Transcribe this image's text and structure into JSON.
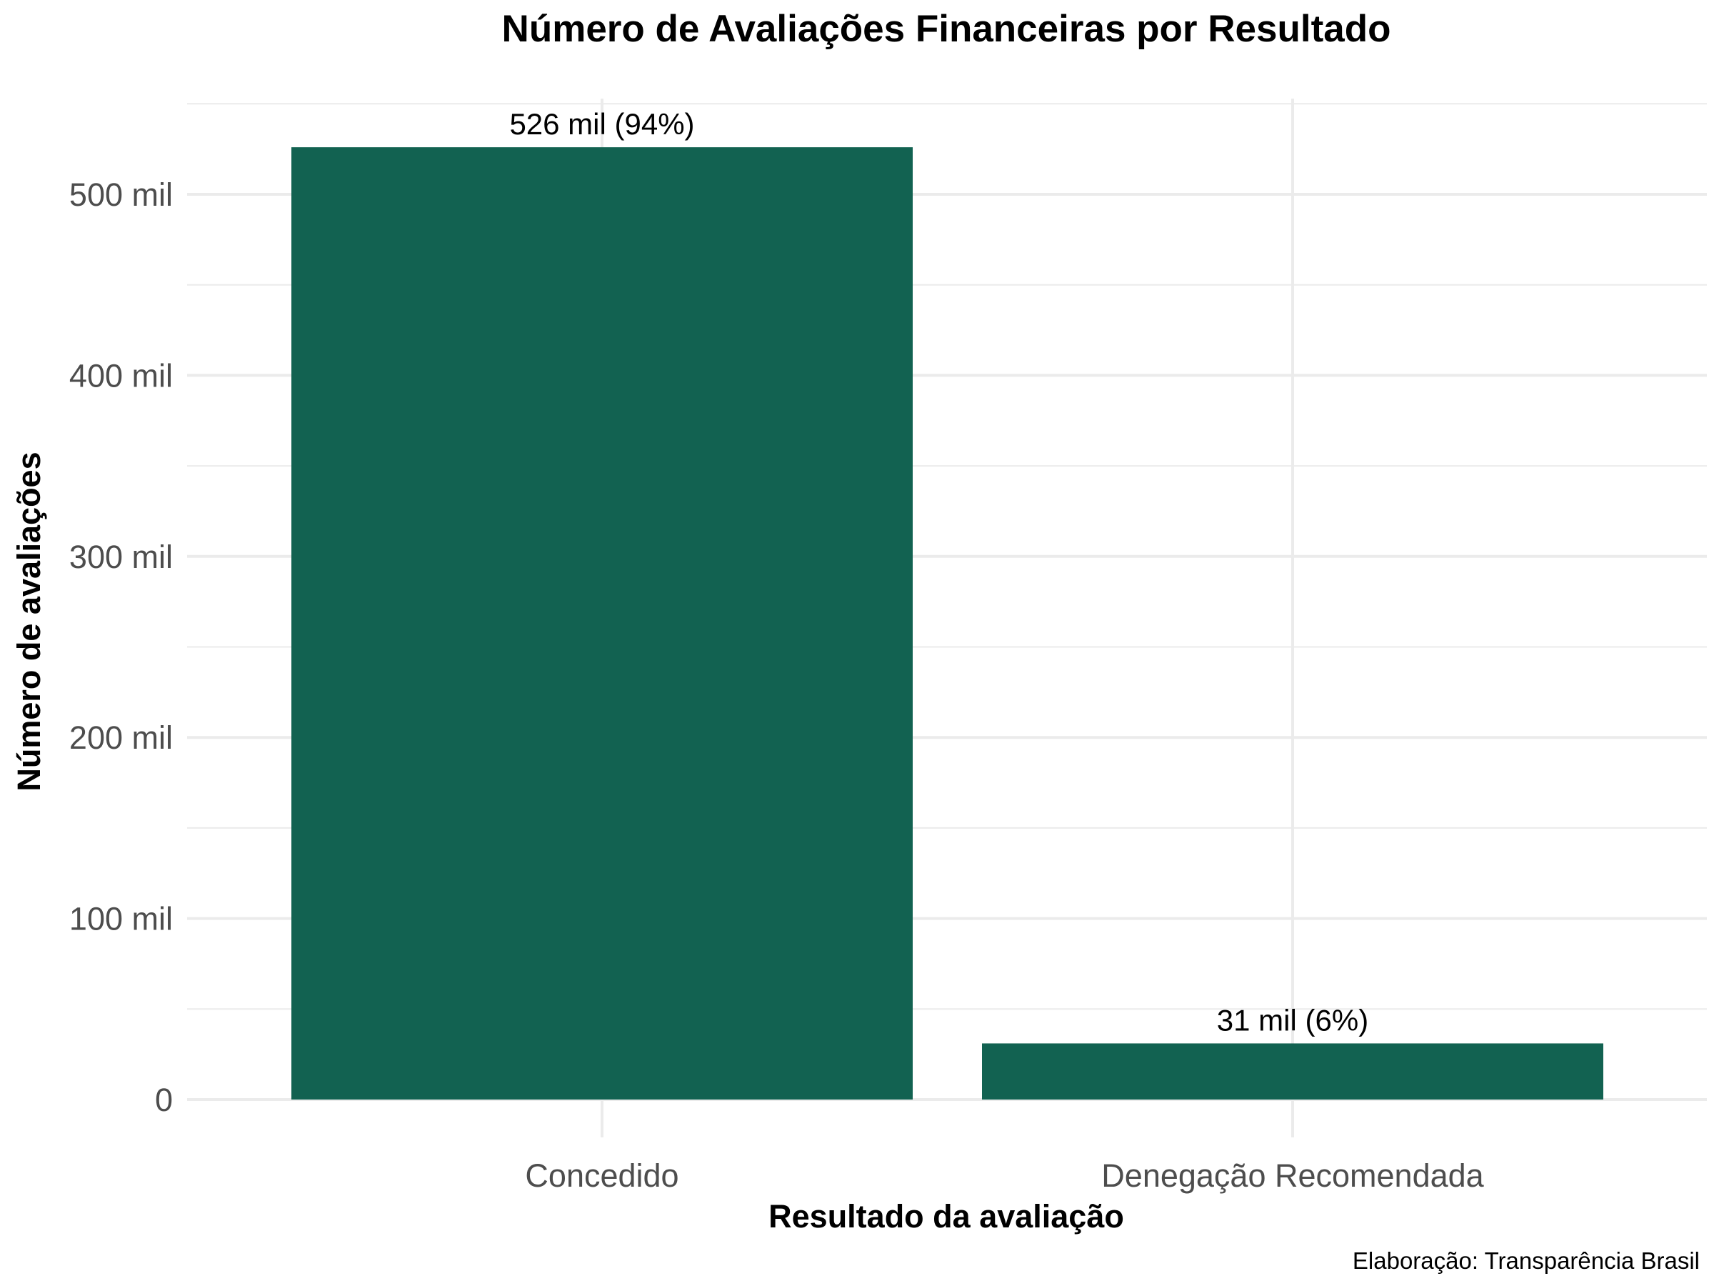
{
  "chart_data": {
    "type": "bar",
    "title": "Número de Avaliações Financeiras por Resultado",
    "xlabel": "Resultado da avaliação",
    "ylabel": "Número de avaliações",
    "caption": "Elaboração: Transparência Brasil",
    "categories": [
      "Concedido",
      "Denegação Recomendada"
    ],
    "values": [
      526000,
      31000
    ],
    "data_labels": [
      "526 mil (94%)",
      "31 mil (6%)"
    ],
    "ylim": [
      0,
      550000
    ],
    "yticks": [
      {
        "value": 0,
        "label": "0"
      },
      {
        "value": 100000,
        "label": "100 mil"
      },
      {
        "value": 200000,
        "label": "200 mil"
      },
      {
        "value": 300000,
        "label": "300 mil"
      },
      {
        "value": 400000,
        "label": "400 mil"
      },
      {
        "value": 500000,
        "label": "500 mil"
      }
    ],
    "minor_ticks": [
      50000,
      150000,
      250000,
      350000,
      450000,
      550000
    ],
    "grid": true,
    "legend": "none",
    "colors": {
      "bar": "#126251",
      "grid": "#ebebeb",
      "tick_text": "#4d4d4d"
    }
  }
}
